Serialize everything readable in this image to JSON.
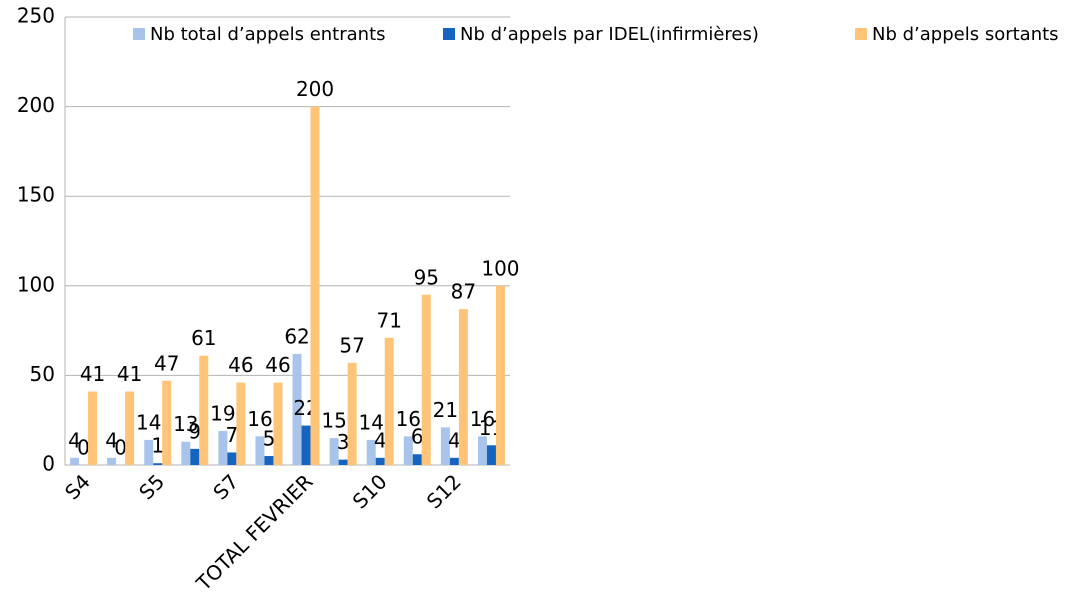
{
  "chart_data": {
    "type": "bar",
    "categories": [
      "S4",
      null,
      "S5",
      null,
      "S7",
      null,
      "TOTAL FEVRIER",
      null,
      "S10",
      null,
      "S12",
      null
    ],
    "series": [
      {
        "name": "Nb total d’appels entrants",
        "color": "#a9c4eb",
        "values": [
          4,
          4,
          14,
          13,
          19,
          16,
          62,
          15,
          14,
          16,
          21,
          16
        ]
      },
      {
        "name": "Nb d’appels par IDEL(infirmières)",
        "color": "#1565c0",
        "values": [
          0,
          0,
          1,
          9,
          7,
          5,
          22,
          3,
          4,
          6,
          4,
          11
        ]
      },
      {
        "name": "Nb d’appels sortants",
        "color": "#ffc477",
        "values": [
          41,
          41,
          47,
          61,
          46,
          46,
          200,
          57,
          71,
          95,
          87,
          100
        ]
      }
    ],
    "ylim": [
      0,
      250
    ],
    "yticks": [
      0,
      50,
      100,
      150,
      200,
      250
    ],
    "grid": true,
    "legend": "top"
  }
}
